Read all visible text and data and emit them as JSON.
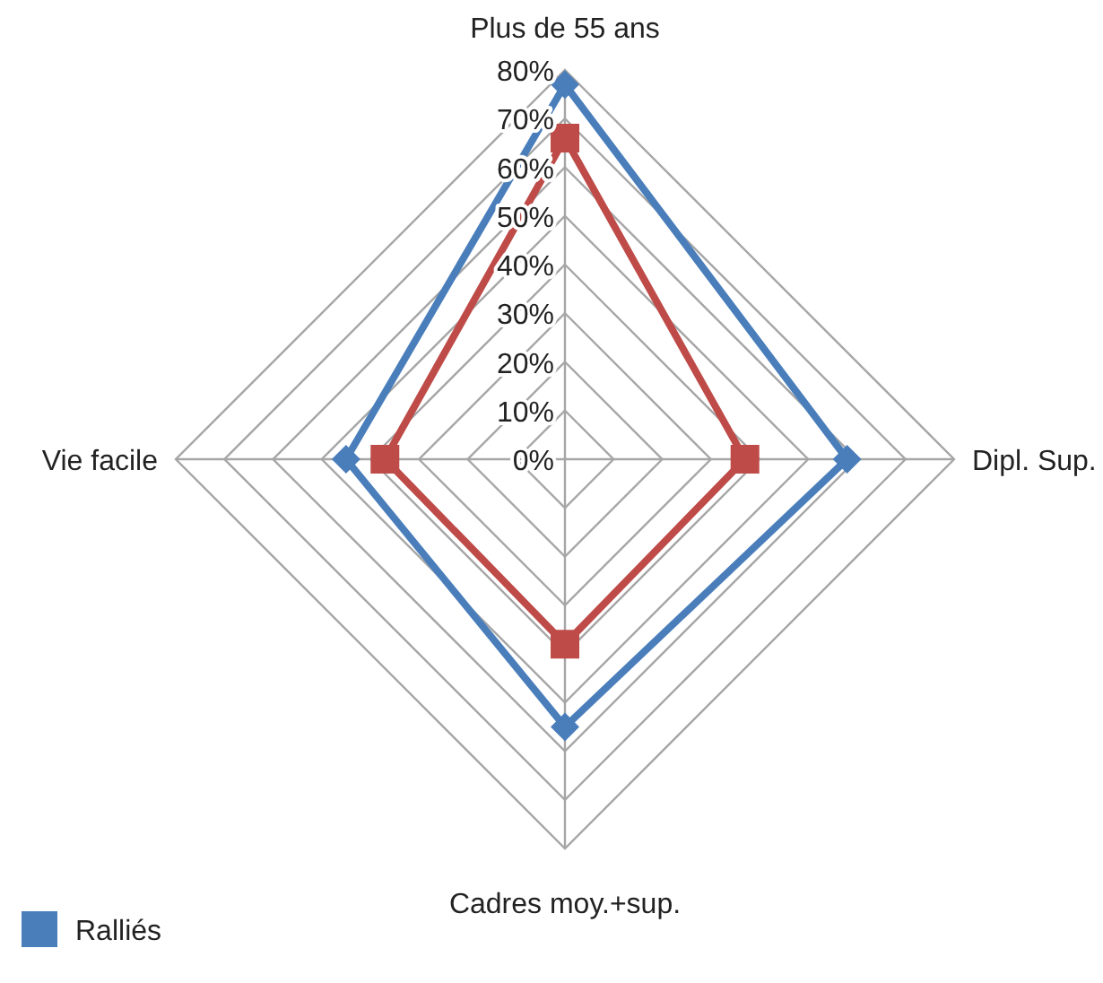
{
  "chart_data": {
    "type": "radar",
    "categories": [
      "Plus de 55 ans",
      "Dipl. Sup.",
      "Cadres moy.+sup.",
      "Vie facile"
    ],
    "series": [
      {
        "name": "Ralliés",
        "color": "#4a7ebb",
        "values": [
          77,
          58,
          55,
          45
        ],
        "marker": "diamond"
      },
      {
        "color": "#be4b48",
        "values": [
          66,
          37,
          38,
          37
        ],
        "marker": "square"
      }
    ],
    "ylim": [
      0,
      80
    ],
    "yticks": [
      {
        "value": 0,
        "label": "0%"
      },
      {
        "value": 10,
        "label": "10%"
      },
      {
        "value": 20,
        "label": "20%"
      },
      {
        "value": 30,
        "label": "30%"
      },
      {
        "value": 40,
        "label": "40%"
      },
      {
        "value": 50,
        "label": "50%"
      },
      {
        "value": 60,
        "label": "60%"
      },
      {
        "value": 70,
        "label": "70%"
      },
      {
        "value": 80,
        "label": "80%"
      }
    ],
    "grid": true,
    "legend": "bottom left"
  }
}
